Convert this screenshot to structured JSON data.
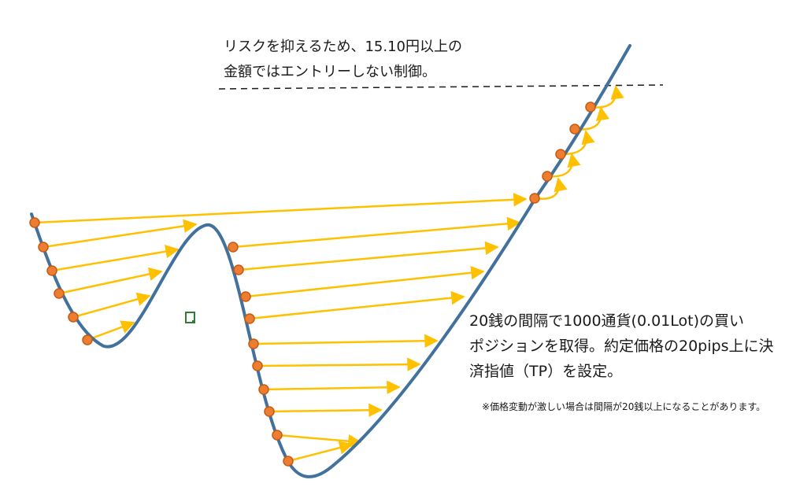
{
  "annotations": {
    "risk_limit_line1": "リスクを抑えるため、15.10円以上の",
    "risk_limit_line2": "金額ではエントリーしない制御。",
    "strategy_line1": "20銭の間隔で1000通貨(0.01Lot)の買い",
    "strategy_line2": "ポジションを取得。約定価格の20pips上に決",
    "strategy_line3": "済指値（TP）を設定。",
    "footnote": "※価格変動が激しい場合は間隔が20銭以上になることがあります。"
  },
  "colors": {
    "price_line": "#41719c",
    "arrow": "#ffc000",
    "entry_point": "#ed7d31",
    "entry_point_stroke": "#c55a11",
    "limit_line": "#1a1a1a",
    "marker": "#2e7d32"
  }
}
